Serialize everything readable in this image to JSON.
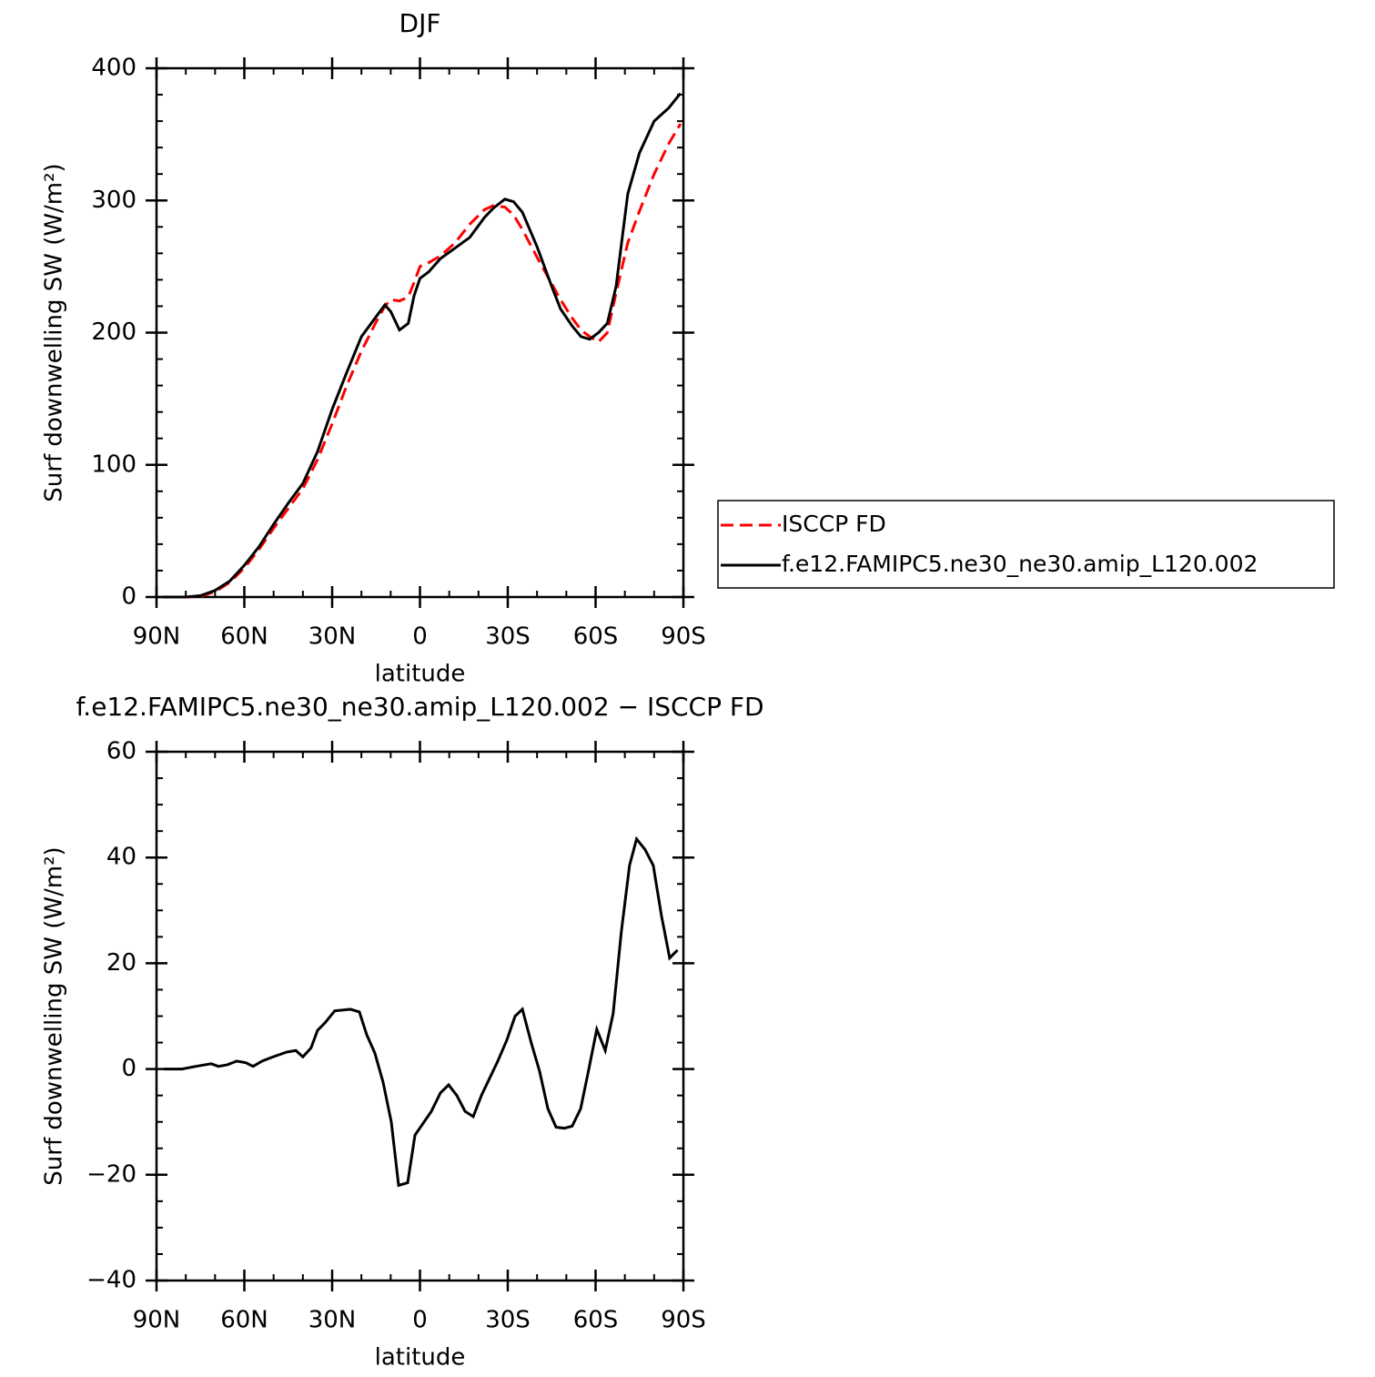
{
  "chart_data": [
    {
      "type": "line",
      "title": "DJF",
      "x_label": "latitude",
      "y_label": "Surf downwelling SW (W/m²)",
      "x": [
        88,
        80,
        75,
        70,
        65,
        60,
        55,
        50,
        45,
        40,
        35,
        30,
        25,
        20,
        15,
        12,
        10,
        7,
        4,
        2,
        0,
        -3,
        -7,
        -12,
        -17,
        -22,
        -25,
        -29,
        -32,
        -35,
        -40,
        -45,
        -48,
        -52,
        -55,
        -58,
        -61,
        -64,
        -67,
        -71,
        -75,
        -80,
        -85,
        -89
      ],
      "series": [
        {
          "name": "ISCCP FD",
          "color": "#ff0000",
          "line_style": "dashed",
          "values": [
            0,
            0,
            0.5,
            4,
            11,
            22,
            36,
            52,
            67,
            82,
            104,
            131,
            160,
            186,
            208,
            220,
            225,
            224,
            227,
            238,
            250,
            253,
            258,
            268,
            282,
            293,
            296,
            295,
            289,
            278,
            257,
            237,
            225,
            211,
            202,
            197,
            193,
            200,
            230,
            268,
            292,
            320,
            343,
            358
          ]
        },
        {
          "name": "f.e12.FAMIPC5.ne30_ne30.amip_L120.002",
          "color": "#000000",
          "line_style": "solid",
          "values": [
            0,
            0,
            1,
            5,
            12,
            24,
            38,
            55,
            71,
            86,
            110,
            142,
            170,
            197,
            212,
            221,
            216,
            202,
            207,
            228,
            241,
            246,
            256,
            264,
            272,
            287,
            294,
            301,
            299,
            291,
            265,
            235,
            218,
            205,
            197,
            195,
            200,
            207,
            235,
            305,
            336,
            360,
            370,
            381
          ]
        }
      ],
      "xlim": [
        90,
        -90
      ],
      "xticks": [
        {
          "value": 90,
          "label": "90N"
        },
        {
          "value": 60,
          "label": "60N"
        },
        {
          "value": 30,
          "label": "30N"
        },
        0,
        {
          "value": -30,
          "label": "30S"
        },
        {
          "value": -60,
          "label": "60S"
        },
        {
          "value": -90,
          "label": "90S"
        }
      ],
      "ylim": [
        0,
        400
      ],
      "yticks": [
        0,
        100,
        200,
        300,
        400
      ],
      "legend": "right"
    },
    {
      "type": "line",
      "title": "f.e12.FAMIPC5.ne30_ne30.amip_L120.002 − ISCCP FD",
      "x_label": "latitude",
      "y_label": "Surf downwelling SW (W/m²)",
      "x": [
        87.5,
        81.3,
        76.6,
        71.3,
        68.9,
        65.8,
        62.6,
        59.5,
        57,
        53.9,
        50.2,
        45.5,
        42.4,
        40,
        37.2,
        35,
        32.5,
        29.1,
        23.8,
        20.7,
        18.2,
        15.4,
        12.6,
        9.8,
        7.3,
        4.2,
        1.7,
        -3.9,
        -7,
        -9.8,
        -12.6,
        -15.4,
        -18.2,
        -21,
        -26.6,
        -29.7,
        -32.5,
        -35,
        -38,
        -40.9,
        -43.7,
        -46.5,
        -49.3,
        -52,
        -54.9,
        -57.7,
        -60.4,
        -63.3,
        -66,
        -68.8,
        -71.6,
        -74,
        -76.9,
        -79.7,
        -82.5,
        -85.3,
        -88
      ],
      "values": [
        0,
        0,
        0.5,
        1,
        0.5,
        0.8,
        1.5,
        1.2,
        0.5,
        1.5,
        2.3,
        3.2,
        3.5,
        2.3,
        4,
        7.3,
        8.7,
        11,
        11.3,
        10.8,
        6.5,
        3,
        -2.5,
        -10,
        -22,
        -21.5,
        -12.5,
        -8,
        -4.5,
        -3,
        -5,
        -8,
        -9,
        -5,
        1.5,
        5.5,
        10,
        11.3,
        5,
        -0.5,
        -7.5,
        -11,
        -11.2,
        -10.8,
        -7.5,
        0,
        7.5,
        3.5,
        10.5,
        26,
        38.5,
        43.5,
        41.5,
        38.5,
        29,
        21,
        22.5
      ],
      "color": "#000000",
      "xlim": [
        90,
        -90
      ],
      "xticks": [
        {
          "value": 90,
          "label": "90N"
        },
        {
          "value": 60,
          "label": "60N"
        },
        {
          "value": 30,
          "label": "30N"
        },
        0,
        {
          "value": -30,
          "label": "30S"
        },
        {
          "value": -60,
          "label": "60S"
        },
        {
          "value": -90,
          "label": "90S"
        }
      ],
      "ylim": [
        -40,
        60
      ],
      "yticks": [
        {
          "value": -40,
          "label": "−40"
        },
        {
          "value": -20,
          "label": "−20"
        },
        0,
        20,
        40,
        60
      ]
    }
  ]
}
